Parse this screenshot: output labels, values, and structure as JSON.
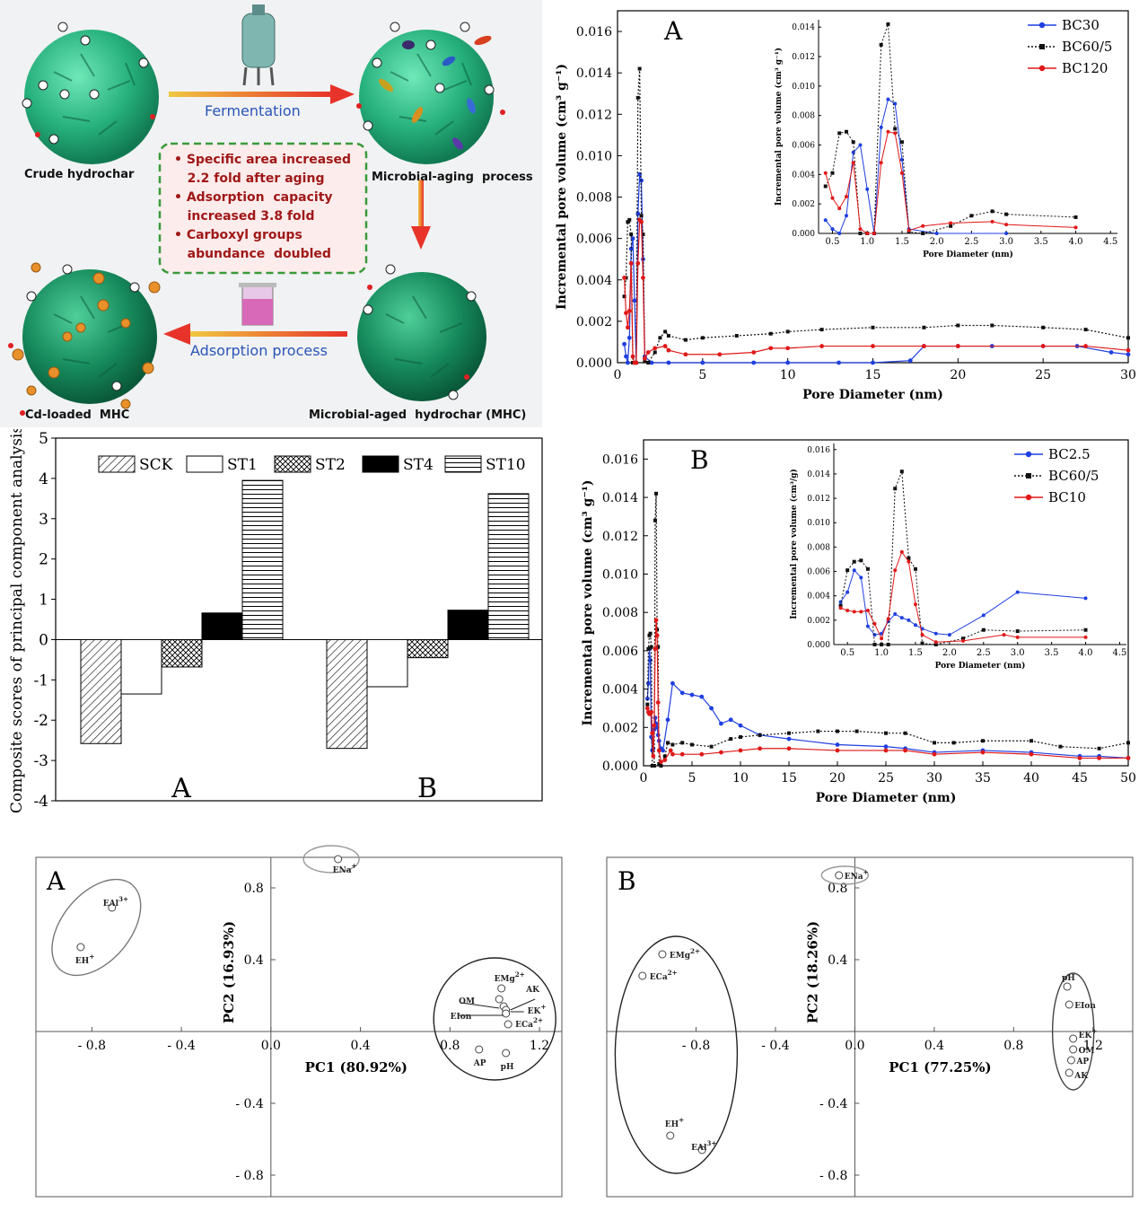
{
  "schematic": {
    "fermentation": "Fermentation",
    "adsorption": "Adsorption process",
    "crude": "Crude hydrochar",
    "microbial_aging": "Microbial-aging  process",
    "mha": "Microbial-aged  hydrochar (MHC)",
    "cd_loaded": "Cd-loaded  MHC",
    "bullets": [
      [
        "Specific area increased",
        "2.2 fold after aging"
      ],
      [
        "Adsorption  capacity",
        "increased 3.8 fold"
      ],
      [
        "Carboxyl groups",
        "abundance  doubled"
      ]
    ],
    "colors": {
      "sphere": "#2ec08a",
      "arrow": "#e8332a",
      "label_blue": "#2a55b8",
      "bullet_red": "#a01818",
      "box_border": "#3a9a3a"
    }
  },
  "chart_data": [
    {
      "id": "pore-A",
      "type": "line",
      "panel_label": "A",
      "xlabel": "Pore Diameter (nm)",
      "ylabel": "Incremental pore volume (cm³ g⁻¹)",
      "xlim": [
        0,
        30
      ],
      "ylim": [
        0,
        0.017
      ],
      "xticks": [
        0,
        5,
        10,
        15,
        20,
        25,
        30
      ],
      "yticks": [
        0.0,
        0.002,
        0.004,
        0.006,
        0.008,
        0.01,
        0.012,
        0.014,
        0.016
      ],
      "legend": "top-right",
      "series": [
        {
          "name": "BC30",
          "color": "#1f3fe0",
          "dash": false,
          "x": [
            0.4,
            0.5,
            0.6,
            0.7,
            0.8,
            0.9,
            1.0,
            1.1,
            1.2,
            1.3,
            1.4,
            1.5,
            1.6,
            2,
            3,
            5,
            8,
            10,
            13,
            15,
            17.2,
            18,
            20,
            22,
            25,
            27,
            29,
            30
          ],
          "y": [
            0.0009,
            0.0003,
            0.0,
            0.0012,
            0.0055,
            0.006,
            0.003,
            0.0,
            0.0072,
            0.0091,
            0.0088,
            0.005,
            0.0003,
            0.0,
            0.0,
            0.0,
            0.0,
            0.0,
            0.0,
            0.0,
            0.0001,
            0.0008,
            0.0008,
            0.0008,
            0.0008,
            0.0008,
            0.0005,
            0.0004
          ]
        },
        {
          "name": "BC60/5",
          "color": "#111111",
          "dash": true,
          "x": [
            0.4,
            0.5,
            0.6,
            0.7,
            0.8,
            0.9,
            1.0,
            1.1,
            1.2,
            1.3,
            1.4,
            1.5,
            1.6,
            1.8,
            2.2,
            2.5,
            2.8,
            3,
            4,
            5,
            7,
            9,
            10,
            12,
            15,
            18,
            20,
            22,
            25,
            27.5,
            30
          ],
          "y": [
            0.0032,
            0.0041,
            0.0068,
            0.0069,
            0.0062,
            0.0,
            0.0,
            0.0,
            0.0128,
            0.0142,
            0.0071,
            0.0062,
            0.0001,
            0.0,
            0.0005,
            0.0012,
            0.0015,
            0.0013,
            0.0011,
            0.0012,
            0.0013,
            0.0014,
            0.0015,
            0.0016,
            0.0017,
            0.0017,
            0.0018,
            0.0018,
            0.0017,
            0.0016,
            0.0012
          ]
        },
        {
          "name": "BC120",
          "color": "#e01818",
          "dash": false,
          "x": [
            0.4,
            0.5,
            0.6,
            0.7,
            0.8,
            0.9,
            1.0,
            1.1,
            1.2,
            1.3,
            1.4,
            1.5,
            1.6,
            1.8,
            2.2,
            2.8,
            3,
            4,
            6,
            8,
            9,
            10,
            12,
            15,
            18,
            20,
            25,
            27.5,
            30
          ],
          "y": [
            0.0041,
            0.0024,
            0.0017,
            0.0025,
            0.0048,
            0.0003,
            0.0,
            0.0,
            0.0048,
            0.0069,
            0.0068,
            0.0041,
            0.0002,
            0.0005,
            0.0007,
            0.0008,
            0.0006,
            0.0004,
            0.0004,
            0.0005,
            0.0007,
            0.0007,
            0.0008,
            0.0008,
            0.0008,
            0.0008,
            0.0008,
            0.0008,
            0.0006
          ]
        }
      ],
      "inset": {
        "xlabel": "Pore Diameter (nm)",
        "ylabel": "Incremental pore volume (cm³ g⁻¹)",
        "xlim": [
          0.3,
          4.6
        ],
        "ylim": [
          0,
          0.0145
        ],
        "xticks": [
          0.5,
          1.0,
          1.5,
          2.0,
          2.5,
          3.0,
          3.5,
          4.0,
          4.5
        ],
        "yticks": [
          0.0,
          0.002,
          0.004,
          0.006,
          0.008,
          0.01,
          0.012,
          0.014
        ]
      }
    },
    {
      "id": "pore-B",
      "type": "line",
      "panel_label": "B",
      "xlabel": "Pore Diameter (nm)",
      "ylabel": "Incremental pore volume (cm³ g⁻¹)",
      "xlim": [
        0,
        50
      ],
      "ylim": [
        0,
        0.017
      ],
      "xticks": [
        0,
        5,
        10,
        15,
        20,
        25,
        30,
        35,
        40,
        45,
        50
      ],
      "yticks": [
        0.0,
        0.002,
        0.004,
        0.006,
        0.008,
        0.01,
        0.012,
        0.014,
        0.016
      ],
      "legend": "top-right",
      "series": [
        {
          "name": "BC2.5",
          "color": "#1f3fe0",
          "dash": false,
          "x": [
            0.4,
            0.5,
            0.6,
            0.7,
            0.8,
            0.9,
            1.0,
            1.1,
            1.2,
            1.3,
            1.4,
            1.5,
            1.6,
            1.8,
            2,
            2.5,
            3,
            4,
            5,
            6,
            7,
            8,
            9,
            10,
            12,
            15,
            20,
            25,
            27,
            30,
            35,
            40,
            45,
            47,
            50
          ],
          "y": [
            0.0035,
            0.0043,
            0.0061,
            0.0055,
            0.0015,
            0.0008,
            0.0009,
            0.0019,
            0.0025,
            0.0022,
            0.002,
            0.0016,
            0.0013,
            0.0009,
            0.0008,
            0.0024,
            0.0043,
            0.0038,
            0.0037,
            0.0036,
            0.003,
            0.0022,
            0.0024,
            0.0021,
            0.0016,
            0.0014,
            0.0011,
            0.001,
            0.0009,
            0.0007,
            0.0008,
            0.0007,
            0.0005,
            0.0005,
            0.0004
          ]
        },
        {
          "name": "BC60/5",
          "color": "#111111",
          "dash": true,
          "x": [
            0.4,
            0.5,
            0.6,
            0.7,
            0.8,
            0.9,
            1.0,
            1.1,
            1.2,
            1.3,
            1.4,
            1.5,
            1.6,
            1.8,
            2.2,
            2.5,
            3,
            4,
            5,
            7,
            9,
            10,
            12,
            15,
            18,
            20,
            22,
            25,
            27,
            30,
            32,
            35,
            40,
            43,
            47,
            50
          ],
          "y": [
            0.0032,
            0.0061,
            0.0068,
            0.0069,
            0.0062,
            0.0,
            0.0,
            0.0,
            0.0128,
            0.0142,
            0.0071,
            0.0062,
            0.0001,
            0.0,
            0.0005,
            0.0012,
            0.0011,
            0.0012,
            0.0011,
            0.001,
            0.0014,
            0.0015,
            0.0016,
            0.0017,
            0.0018,
            0.0018,
            0.0018,
            0.0017,
            0.0017,
            0.0012,
            0.0012,
            0.0013,
            0.0013,
            0.001,
            0.0009,
            0.0012
          ]
        },
        {
          "name": "BC10",
          "color": "#e01818",
          "dash": false,
          "x": [
            0.4,
            0.5,
            0.6,
            0.7,
            0.8,
            0.9,
            1.0,
            1.1,
            1.2,
            1.3,
            1.4,
            1.5,
            1.6,
            1.8,
            2.2,
            2.8,
            3,
            4,
            6,
            8,
            10,
            12,
            15,
            20,
            25,
            27,
            30,
            35,
            40,
            45,
            47,
            50
          ],
          "y": [
            0.003,
            0.0028,
            0.0027,
            0.0027,
            0.0028,
            0.0017,
            0.0005,
            0.0021,
            0.0061,
            0.0076,
            0.0068,
            0.0033,
            0.0008,
            0.0002,
            0.0003,
            0.0008,
            0.0006,
            0.0006,
            0.0006,
            0.0007,
            0.0008,
            0.0009,
            0.0009,
            0.0008,
            0.0008,
            0.0008,
            0.0006,
            0.0007,
            0.0006,
            0.0004,
            0.0004,
            0.0004
          ]
        }
      ],
      "inset": {
        "xlabel": "Pore Diameter (nm)",
        "ylabel": "Incremental pore volume (cm³/g)",
        "xlim": [
          0.3,
          4.6
        ],
        "ylim": [
          0,
          0.0165
        ],
        "xticks": [
          0.5,
          1.0,
          1.5,
          2.0,
          2.5,
          3.0,
          3.5,
          4.0,
          4.5
        ],
        "yticks": [
          0.0,
          0.002,
          0.004,
          0.006,
          0.008,
          0.01,
          0.012,
          0.014,
          0.016
        ]
      }
    },
    {
      "id": "composite-bars",
      "type": "bar",
      "ylabel": "Composite scores of principal component analysis",
      "ylim": [
        -4,
        5
      ],
      "yticks": [
        -4,
        -3,
        -2,
        -1,
        0,
        1,
        2,
        3,
        4,
        5
      ],
      "categories": [
        "A",
        "B"
      ],
      "legend": "top",
      "series": [
        {
          "name": "SCK",
          "pattern": "diag",
          "values": [
            -2.58,
            -2.7
          ]
        },
        {
          "name": "ST1",
          "pattern": "white",
          "values": [
            -1.35,
            -1.17
          ]
        },
        {
          "name": "ST2",
          "pattern": "cross",
          "values": [
            -0.68,
            -0.45
          ]
        },
        {
          "name": "ST4",
          "pattern": "black",
          "values": [
            0.66,
            0.73
          ]
        },
        {
          "name": "ST10",
          "pattern": "horiz",
          "values": [
            3.95,
            3.62
          ]
        }
      ]
    },
    {
      "id": "pca-A",
      "type": "scatter",
      "panel_label": "A",
      "xlabel": "PC1 (80.92%)",
      "ylabel": "PC2 (16.93%)",
      "xlim": [
        -1.05,
        1.3
      ],
      "ylim": [
        -0.92,
        0.97
      ],
      "xticks": [
        -0.8,
        -0.4,
        0.0,
        0.4,
        0.8,
        1.2
      ],
      "xticklabels": [
        "- 0.8",
        "- 0.4",
        "0.0",
        "0.4",
        "0.8",
        "1.2"
      ],
      "yticks": [
        0.8,
        0.4,
        -0.4,
        -0.8
      ],
      "yticklabels": [
        "0.8",
        "0.4",
        "- 0.4",
        "- 0.8"
      ],
      "points": [
        {
          "label": "ENa+",
          "x": 0.3,
          "y": 0.96
        },
        {
          "label": "EAl3+",
          "x": -0.71,
          "y": 0.69
        },
        {
          "label": "EH+",
          "x": -0.85,
          "y": 0.47
        },
        {
          "label": "EMg2+",
          "x": 1.03,
          "y": 0.24
        },
        {
          "label": "AK",
          "x": 1.02,
          "y": 0.18
        },
        {
          "label": "OM",
          "x": 1.04,
          "y": 0.14
        },
        {
          "label": "EK+",
          "x": 1.05,
          "y": 0.12
        },
        {
          "label": "EIon",
          "x": 1.05,
          "y": 0.1
        },
        {
          "label": "ECa2+",
          "x": 1.06,
          "y": 0.04
        },
        {
          "label": "AP",
          "x": 0.93,
          "y": -0.1
        },
        {
          "label": "pH",
          "x": 1.05,
          "y": -0.12
        }
      ]
    },
    {
      "id": "pca-B",
      "type": "scatter",
      "panel_label": "B",
      "xlabel": "PC1 (77.25%)",
      "ylabel": "PC2 (18.26%)",
      "xlim": [
        -1.25,
        1.4
      ],
      "ylim": [
        -0.92,
        0.97
      ],
      "xticks": [
        -0.8,
        -0.4,
        0.0,
        0.4,
        0.8,
        1.2
      ],
      "xticklabels": [
        "- 0.8",
        "- 0.4",
        "0.0",
        "0.4",
        "0.8",
        "1.2"
      ],
      "yticks": [
        0.8,
        0.4,
        -0.4,
        -0.8
      ],
      "yticklabels": [
        "0.8",
        "0.4",
        "- 0.4",
        "- 0.8"
      ],
      "points": [
        {
          "label": "ENa+",
          "x": -0.08,
          "y": 0.87
        },
        {
          "label": "EMg2+",
          "x": -0.97,
          "y": 0.43
        },
        {
          "label": "ECa2+",
          "x": -1.07,
          "y": 0.31
        },
        {
          "label": "pH",
          "x": 1.07,
          "y": 0.25
        },
        {
          "label": "EIon",
          "x": 1.08,
          "y": 0.15
        },
        {
          "label": "EK+",
          "x": 1.1,
          "y": -0.04
        },
        {
          "label": "OM",
          "x": 1.1,
          "y": -0.1
        },
        {
          "label": "AP",
          "x": 1.09,
          "y": -0.16
        },
        {
          "label": "AK",
          "x": 1.08,
          "y": -0.23
        },
        {
          "label": "EH+",
          "x": -0.93,
          "y": -0.58
        },
        {
          "label": "EAl3+",
          "x": -0.77,
          "y": -0.66
        }
      ]
    }
  ]
}
